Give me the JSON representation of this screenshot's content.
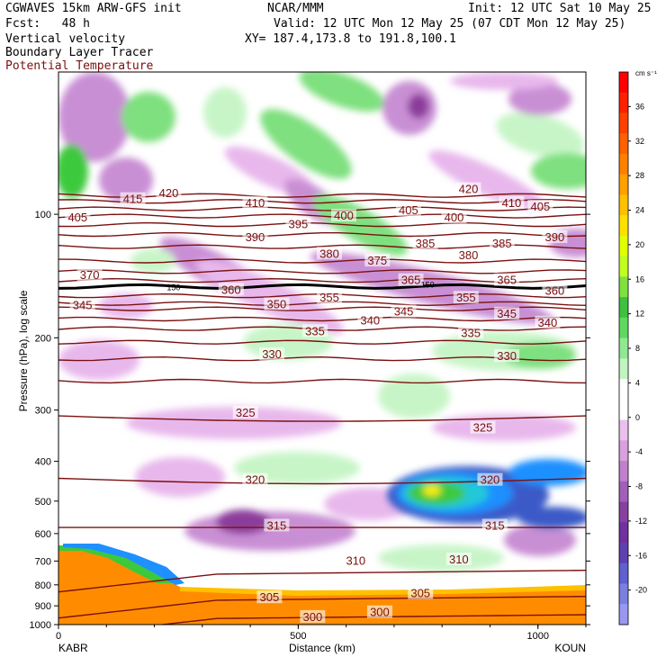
{
  "header": {
    "line1_left": "CGWAVES 15km ARW-GFS init",
    "line1_mid": "NCAR/MMM",
    "line1_right": "Init: 12 UTC Sat 10 May 25",
    "line2_left": "Fcst:   48 h",
    "line2_right": "Valid: 12 UTC Mon 12 May 25 (07 CDT Mon 12 May 25)",
    "line3_left": "Vertical velocity",
    "line3_right": "XY= 187.4,173.8 to 191.8,100.1",
    "line4_left": "Boundary Layer Tracer",
    "line5_left": "Potential Temperature"
  },
  "colors": {
    "theta": "#7a1010",
    "pos_light": "#c8f5c8",
    "pos_mid": "#7fe07f",
    "pos_strong": "#3cc93c",
    "neg_light": "#e8b8ec",
    "neg_mid": "#c98fd4",
    "neg_strong": "#8c3c9c",
    "tracer": "#ff8c00"
  },
  "chart_data": {
    "type": "heatmap",
    "xlabel": "Distance (km)",
    "ylabel": "Pressure (hPa), log scale",
    "x_ticks": [
      0,
      500,
      1000
    ],
    "x_range": [
      0,
      1100
    ],
    "y_ticks": [
      100,
      200,
      300,
      400,
      500,
      600,
      700,
      800,
      900,
      1000
    ],
    "y_range_hpa": [
      1000,
      45
    ],
    "y_scale": "log",
    "start_label": "KABR",
    "end_label": "KOUN",
    "colorbar": {
      "units": "cm s⁻¹",
      "ticks": [
        36,
        32,
        28,
        24,
        20,
        16,
        12,
        8,
        4,
        0,
        -4,
        -8,
        -12,
        -16,
        -20
      ],
      "colors": [
        "#ff0000",
        "#ff2000",
        "#ff4000",
        "#ff6000",
        "#ff8000",
        "#ffa000",
        "#ffc000",
        "#ffe000",
        "#e0ff00",
        "#c0ff20",
        "#80e040",
        "#40c040",
        "#60d860",
        "#90e890",
        "#c0f4c0",
        "#ffffff",
        "#ffffff",
        "#ecc0ee",
        "#d8a0de",
        "#c080cc",
        "#a060b8",
        "#8840a0",
        "#7030a0",
        "#6040b0",
        "#6060d0",
        "#7880e0",
        "#9898f0"
      ]
    },
    "theta_contours": [
      {
        "value": 300,
        "p": 975
      },
      {
        "value": 305,
        "p": 880
      },
      {
        "value": 310,
        "p": 760
      },
      {
        "value": 315,
        "p": 580
      },
      {
        "value": 320,
        "p": 440
      },
      {
        "value": 325,
        "p": 310
      },
      {
        "value": 330,
        "p": 255
      },
      {
        "value": 335,
        "p": 225
      },
      {
        "value": 340,
        "p": 205
      },
      {
        "value": 345,
        "p": 190
      },
      {
        "value": 350,
        "p": 180
      },
      {
        "value": 355,
        "p": 170
      },
      {
        "value": 360,
        "p": 165
      },
      {
        "value": 365,
        "p": 158
      },
      {
        "value": 370,
        "p": 150
      },
      {
        "value": 375,
        "p": 145
      },
      {
        "value": 380,
        "p": 138
      },
      {
        "value": 385,
        "p": 130
      },
      {
        "value": 390,
        "p": 120
      },
      {
        "value": 395,
        "p": 112
      },
      {
        "value": 400,
        "p": 106
      },
      {
        "value": 405,
        "p": 101
      },
      {
        "value": 410,
        "p": 97
      },
      {
        "value": 415,
        "p": 93
      },
      {
        "value": 420,
        "p": 90
      }
    ],
    "tropopause_label": "150",
    "theta_labels": [
      {
        "text": "420",
        "x": 230,
        "p": 89
      },
      {
        "text": "415",
        "x": 155,
        "p": 92
      },
      {
        "text": "405",
        "x": 40,
        "p": 102
      },
      {
        "text": "410",
        "x": 410,
        "p": 94
      },
      {
        "text": "400",
        "x": 595,
        "p": 101
      },
      {
        "text": "395",
        "x": 500,
        "p": 106
      },
      {
        "text": "390",
        "x": 410,
        "p": 114
      },
      {
        "text": "405",
        "x": 730,
        "p": 98
      },
      {
        "text": "420",
        "x": 855,
        "p": 87
      },
      {
        "text": "410",
        "x": 945,
        "p": 94
      },
      {
        "text": "405",
        "x": 1005,
        "p": 96
      },
      {
        "text": "400",
        "x": 825,
        "p": 102
      },
      {
        "text": "390",
        "x": 1035,
        "p": 114
      },
      {
        "text": "385",
        "x": 765,
        "p": 118
      },
      {
        "text": "380",
        "x": 565,
        "p": 125
      },
      {
        "text": "375",
        "x": 665,
        "p": 130
      },
      {
        "text": "380",
        "x": 855,
        "p": 126
      },
      {
        "text": "385",
        "x": 925,
        "p": 118
      },
      {
        "text": "370",
        "x": 65,
        "p": 141
      },
      {
        "text": "365",
        "x": 735,
        "p": 145
      },
      {
        "text": "365",
        "x": 935,
        "p": 145
      },
      {
        "text": "360",
        "x": 360,
        "p": 153
      },
      {
        "text": "360",
        "x": 1035,
        "p": 154
      },
      {
        "text": "355",
        "x": 565,
        "p": 160
      },
      {
        "text": "355",
        "x": 850,
        "p": 160
      },
      {
        "text": "350",
        "x": 455,
        "p": 166
      },
      {
        "text": "345",
        "x": 50,
        "p": 167
      },
      {
        "text": "345",
        "x": 720,
        "p": 173
      },
      {
        "text": "345",
        "x": 935,
        "p": 175
      },
      {
        "text": "340",
        "x": 650,
        "p": 182
      },
      {
        "text": "340",
        "x": 1020,
        "p": 184
      },
      {
        "text": "335",
        "x": 535,
        "p": 193
      },
      {
        "text": "335",
        "x": 860,
        "p": 195
      },
      {
        "text": "330",
        "x": 445,
        "p": 220
      },
      {
        "text": "330",
        "x": 935,
        "p": 222
      },
      {
        "text": "325",
        "x": 390,
        "p": 305
      },
      {
        "text": "325",
        "x": 885,
        "p": 332
      },
      {
        "text": "320",
        "x": 410,
        "p": 445
      },
      {
        "text": "320",
        "x": 900,
        "p": 445
      },
      {
        "text": "315",
        "x": 455,
        "p": 575
      },
      {
        "text": "315",
        "x": 910,
        "p": 575
      },
      {
        "text": "310",
        "x": 620,
        "p": 700
      },
      {
        "text": "310",
        "x": 835,
        "p": 695
      },
      {
        "text": "305",
        "x": 440,
        "p": 860
      },
      {
        "text": "305",
        "x": 755,
        "p": 840
      },
      {
        "text": "300",
        "x": 530,
        "p": 960
      },
      {
        "text": "300",
        "x": 670,
        "p": 935
      }
    ]
  }
}
